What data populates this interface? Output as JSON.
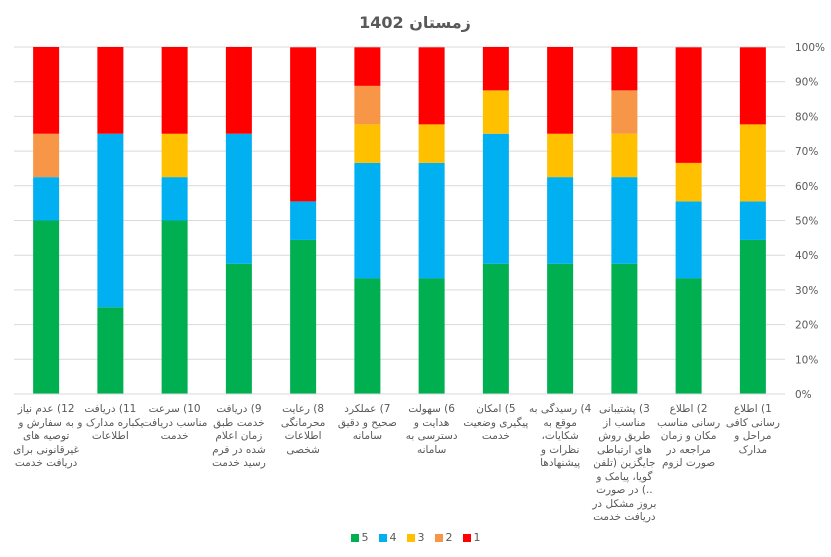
{
  "chart_data": {
    "type": "bar",
    "stacked": "percent",
    "title": "زمستان 1402",
    "xlabel": "",
    "ylabel": "",
    "ylim": [
      0,
      100
    ],
    "y_ticks": [
      "0%",
      "10%",
      "20%",
      "30%",
      "40%",
      "50%",
      "60%",
      "70%",
      "80%",
      "90%",
      "100%"
    ],
    "y_axis_position": "right",
    "x_axis_direction": "right-to-left",
    "grid": true,
    "legend_position": "bottom",
    "categories": [
      "1) اطلاع رسانی کافی مراحل و مدارک",
      "2) اطلاع رسانی مناسب مکان و زمان مراجعه در صورت لزوم",
      "3) پشتیبانی مناسب از طریق روش های ارتباطی جایگزین (تلفن گویا، پیامک و ..) در صورت بروز مشکل در دریافت خدمت",
      "4) رسیدگی به موقع به شکایات، نظرات و پیشنهادها",
      "5) امکان پیگیری وضعیت خدمت",
      "6) سهولت هدایت و دسترسی به سامانه",
      "7) عملکرد صحیح و دقیق سامانه",
      "8) رعایت محرمانگی اطلاعات شخصی",
      "9) دریافت خدمت طبق زمان اعلام شده در فرم رسید خدمت",
      "10) سرعت مناسب دریافت خدمت",
      "11) دریافت یکباره مدارک و اطلاعات",
      "12) عدم نیاز به سفارش و توصیه های غیرقانونی برای دریافت خدمت"
    ],
    "series": [
      {
        "name": "5",
        "color": "#00B050",
        "values": [
          44.4,
          33.3,
          37.5,
          37.5,
          37.5,
          33.3,
          33.3,
          44.4,
          37.5,
          50.0,
          25.0,
          50.0
        ]
      },
      {
        "name": "4",
        "color": "#00B0F0",
        "values": [
          11.1,
          22.2,
          25.0,
          25.0,
          37.5,
          33.3,
          33.3,
          11.1,
          37.5,
          12.5,
          50.0,
          12.5
        ]
      },
      {
        "name": "3",
        "color": "#FFC000",
        "values": [
          22.2,
          11.1,
          12.5,
          12.5,
          12.5,
          11.1,
          11.1,
          0,
          0,
          12.5,
          0,
          0
        ]
      },
      {
        "name": "2",
        "color": "#F79646",
        "values": [
          0,
          0,
          12.5,
          0,
          0,
          0,
          11.1,
          0,
          0,
          0,
          0,
          12.5
        ]
      },
      {
        "name": "1",
        "color": "#FF0000",
        "values": [
          22.2,
          33.3,
          12.5,
          25.0,
          12.5,
          22.2,
          11.1,
          44.4,
          25.0,
          25.0,
          25.0,
          25.0
        ]
      }
    ],
    "legend": [
      "5",
      "4",
      "3",
      "2",
      "1"
    ]
  }
}
